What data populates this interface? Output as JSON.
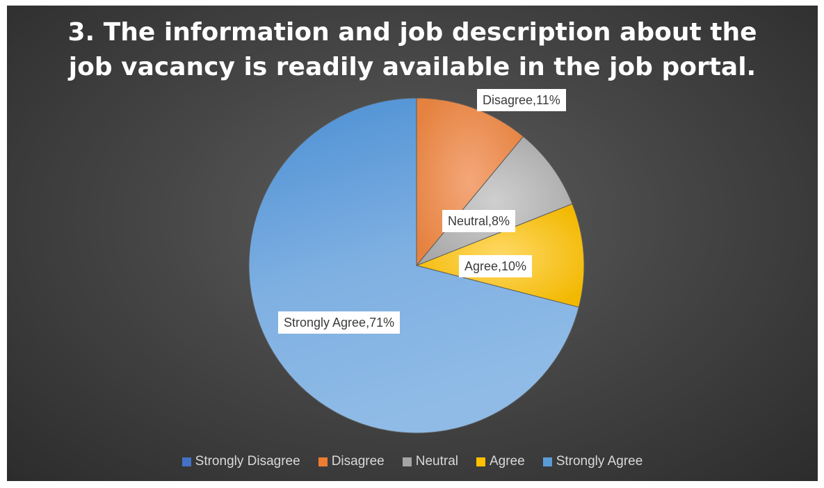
{
  "chart_data": {
    "type": "pie",
    "title_lines": [
      "3. The information and job description about the",
      "job vacancy is readily available in the job portal."
    ],
    "slices": [
      {
        "name": "Strongly Disagree",
        "value": 0,
        "label": "",
        "color": "#4472C4"
      },
      {
        "name": "Disagree",
        "value": 11,
        "label": "Disagree,11%",
        "color": "#ED7D31"
      },
      {
        "name": "Neutral",
        "value": 8,
        "label": "Neutral,8%",
        "color": "#A5A5A5"
      },
      {
        "name": "Agree",
        "value": 10,
        "label": "Agree,10%",
        "color": "#FFC000"
      },
      {
        "name": "Strongly Agree",
        "value": 71,
        "label": "Strongly Agree,71%",
        "color": "#5B9BD5"
      }
    ],
    "legend": [
      {
        "label": "Strongly Disagree",
        "color": "#4472C4"
      },
      {
        "label": "Disagree",
        "color": "#ED7D31"
      },
      {
        "label": "Neutral",
        "color": "#A5A5A5"
      },
      {
        "label": "Agree",
        "color": "#FFC000"
      },
      {
        "label": "Strongly Agree",
        "color": "#5B9BD5"
      }
    ],
    "legend_position": "bottom",
    "start_angle": "12 o'clock",
    "direction": "clockwise"
  }
}
